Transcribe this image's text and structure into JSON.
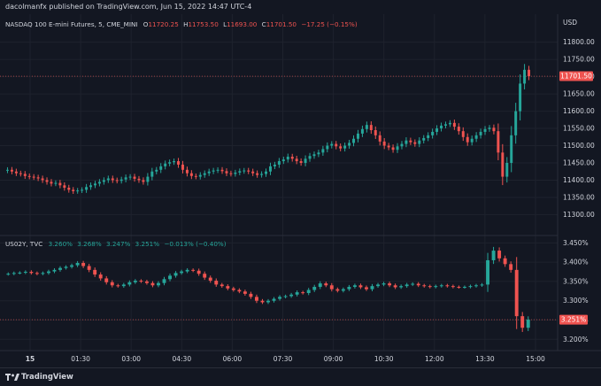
{
  "header": {
    "published_text": "dacolmanfx published on TradingView.com, Jun 15, 2022 14:47 UTC-4"
  },
  "footer": {
    "brand": "TradingView"
  },
  "chart_data": [
    {
      "type": "candlestick",
      "title": "NASDAQ 100 E-mini Futures, 5, CME_MINI",
      "ohlc_legend": {
        "o_label": "O",
        "o_value": "11720.25",
        "h_label": "H",
        "h_value": "11753.50",
        "l_label": "L",
        "l_value": "11693.00",
        "c_label": "C",
        "c_value": "11701.50",
        "change": "−17.25 (−0.15%)"
      },
      "currency": "USD",
      "y_ticks": [
        "11800.00",
        "11750.00",
        "11700.00",
        "11650.00",
        "11600.00",
        "11550.00",
        "11500.00",
        "11450.00",
        "11400.00",
        "11350.00",
        "11300.00"
      ],
      "ylim": [
        11260,
        11830
      ],
      "last_price_label": "11701.50",
      "last_price_value": 11701.5,
      "close_series": [
        11430,
        11425,
        11420,
        11418,
        11412,
        11410,
        11408,
        11405,
        11400,
        11395,
        11390,
        11392,
        11385,
        11378,
        11372,
        11368,
        11370,
        11372,
        11380,
        11385,
        11390,
        11395,
        11400,
        11405,
        11400,
        11398,
        11402,
        11408,
        11410,
        11404,
        11400,
        11395,
        11410,
        11425,
        11430,
        11440,
        11448,
        11452,
        11455,
        11445,
        11430,
        11420,
        11412,
        11410,
        11415,
        11420,
        11425,
        11428,
        11430,
        11426,
        11420,
        11418,
        11422,
        11426,
        11428,
        11425,
        11420,
        11415,
        11418,
        11425,
        11440,
        11445,
        11455,
        11460,
        11468,
        11462,
        11455,
        11450,
        11462,
        11470,
        11475,
        11480,
        11490,
        11500,
        11505,
        11498,
        11492,
        11500,
        11508,
        11520,
        11535,
        11548,
        11560,
        11545,
        11530,
        11512,
        11500,
        11495,
        11488,
        11498,
        11505,
        11515,
        11510,
        11505,
        11515,
        11522,
        11530,
        11540,
        11550,
        11558,
        11562,
        11566,
        11555,
        11542,
        11525,
        11510,
        11520,
        11530,
        11540,
        11548,
        11552,
        11542,
        11480,
        11410,
        11450,
        11530,
        11600,
        11680,
        11720,
        11701.5
      ]
    },
    {
      "type": "line",
      "title": "US02Y, TVC",
      "ohlc_legend": {
        "o_value": "3.260%",
        "h_value": "3.268%",
        "l_value": "3.247%",
        "c_value": "3.251%",
        "change": "−0.013% (−0.40%)"
      },
      "y_ticks": [
        "3.450%",
        "3.400%",
        "3.350%",
        "3.300%",
        "3.250%",
        "3.200%"
      ],
      "ylim": [
        3.18,
        3.46
      ],
      "last_price_label": "3.251%",
      "last_price_value": 3.251,
      "close_series": [
        3.37,
        3.372,
        3.373,
        3.375,
        3.372,
        3.37,
        3.372,
        3.376,
        3.38,
        3.385,
        3.388,
        3.392,
        3.398,
        3.39,
        3.38,
        3.368,
        3.358,
        3.348,
        3.34,
        3.338,
        3.342,
        3.348,
        3.352,
        3.35,
        3.346,
        3.34,
        3.346,
        3.356,
        3.365,
        3.372,
        3.376,
        3.38,
        3.378,
        3.37,
        3.36,
        3.352,
        3.342,
        3.338,
        3.332,
        3.328,
        3.324,
        3.318,
        3.31,
        3.3,
        3.296,
        3.3,
        3.305,
        3.31,
        3.312,
        3.316,
        3.322,
        3.32,
        3.328,
        3.336,
        3.345,
        3.34,
        3.33,
        3.326,
        3.33,
        3.336,
        3.34,
        3.335,
        3.33,
        3.338,
        3.342,
        3.345,
        3.34,
        3.335,
        3.338,
        3.342,
        3.344,
        3.34,
        3.338,
        3.336,
        3.338,
        3.34,
        3.338,
        3.336,
        3.335,
        3.336,
        3.338,
        3.34,
        3.342,
        3.405,
        3.43,
        3.41,
        3.395,
        3.38,
        3.26,
        3.23,
        3.251
      ]
    }
  ],
  "x_axis": {
    "labels": [
      "15",
      "01:30",
      "03:00",
      "04:30",
      "06:00",
      "07:30",
      "09:00",
      "10:30",
      "12:00",
      "13:30",
      "15:00"
    ]
  },
  "colors": {
    "background": "#131722",
    "up": "#26a69a",
    "down": "#ef5350",
    "grid": "#1e222d",
    "text": "#d1d4dc",
    "price_label_bg": "#ef5350"
  }
}
